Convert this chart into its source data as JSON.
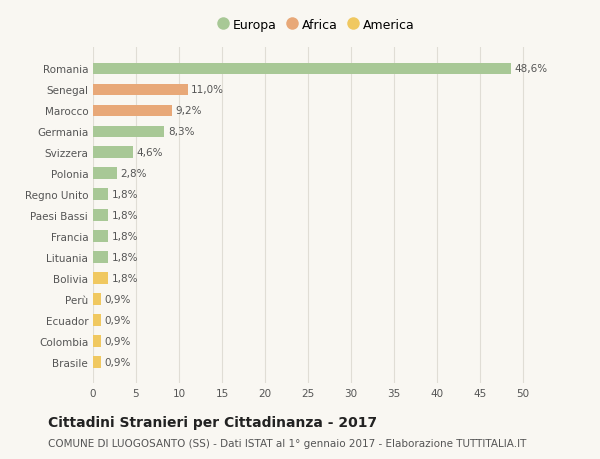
{
  "categories": [
    "Romania",
    "Senegal",
    "Marocco",
    "Germania",
    "Svizzera",
    "Polonia",
    "Regno Unito",
    "Paesi Bassi",
    "Francia",
    "Lituania",
    "Bolivia",
    "Perù",
    "Ecuador",
    "Colombia",
    "Brasile"
  ],
  "values": [
    48.6,
    11.0,
    9.2,
    8.3,
    4.6,
    2.8,
    1.8,
    1.8,
    1.8,
    1.8,
    1.8,
    0.9,
    0.9,
    0.9,
    0.9
  ],
  "labels": [
    "48,6%",
    "11,0%",
    "9,2%",
    "8,3%",
    "4,6%",
    "2,8%",
    "1,8%",
    "1,8%",
    "1,8%",
    "1,8%",
    "1,8%",
    "0,9%",
    "0,9%",
    "0,9%",
    "0,9%"
  ],
  "continents": [
    "Europa",
    "Africa",
    "Africa",
    "Europa",
    "Europa",
    "Europa",
    "Europa",
    "Europa",
    "Europa",
    "Europa",
    "America",
    "America",
    "America",
    "America",
    "America"
  ],
  "colors": {
    "Europa": "#a8c896",
    "Africa": "#e8a878",
    "America": "#f0c860"
  },
  "legend_order": [
    "Europa",
    "Africa",
    "America"
  ],
  "xlim": [
    0,
    52
  ],
  "xticks": [
    0,
    5,
    10,
    15,
    20,
    25,
    30,
    35,
    40,
    45,
    50
  ],
  "title": "Cittadini Stranieri per Cittadinanza - 2017",
  "subtitle": "COMUNE DI LUOGOSANTO (SS) - Dati ISTAT al 1° gennaio 2017 - Elaborazione TUTTITALIA.IT",
  "background_color": "#f9f7f2",
  "grid_color": "#e0ddd5",
  "bar_height": 0.55,
  "title_fontsize": 10,
  "subtitle_fontsize": 7.5,
  "label_fontsize": 7.5,
  "tick_fontsize": 7.5,
  "legend_fontsize": 9,
  "text_color": "#555555",
  "title_color": "#222222"
}
